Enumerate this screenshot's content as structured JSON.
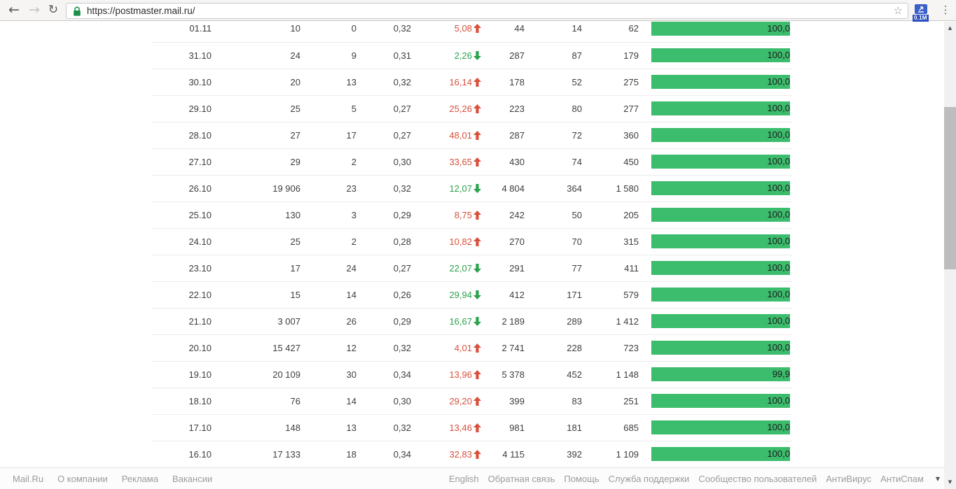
{
  "browser": {
    "url": "https://postmaster.mail.ru/",
    "extension_badge": "0.1M"
  },
  "icons": {
    "back": "←",
    "forward": "→",
    "refresh": "↻",
    "star": "☆",
    "menu": "⋮",
    "scroll_up": "▲",
    "scroll_down": "▼",
    "footer_caret": "▼"
  },
  "colors": {
    "bar_green": "#3cbc6d",
    "trend_up": "#d8503a",
    "trend_down": "#2aa24b",
    "lock_green": "#1a8f47"
  },
  "table": {
    "rows": [
      {
        "date": "01.11",
        "c1": "10",
        "c2": "0",
        "c3": "0,32",
        "pct": "5,08",
        "trend": "up",
        "c5": "44",
        "c6": "14",
        "c7": "62",
        "bar": "100,0"
      },
      {
        "date": "31.10",
        "c1": "24",
        "c2": "9",
        "c3": "0,31",
        "pct": "2,26",
        "trend": "down",
        "c5": "287",
        "c6": "87",
        "c7": "179",
        "bar": "100,0"
      },
      {
        "date": "30.10",
        "c1": "20",
        "c2": "13",
        "c3": "0,32",
        "pct": "16,14",
        "trend": "up",
        "c5": "178",
        "c6": "52",
        "c7": "275",
        "bar": "100,0"
      },
      {
        "date": "29.10",
        "c1": "25",
        "c2": "5",
        "c3": "0,27",
        "pct": "25,26",
        "trend": "up",
        "c5": "223",
        "c6": "80",
        "c7": "277",
        "bar": "100,0"
      },
      {
        "date": "28.10",
        "c1": "27",
        "c2": "17",
        "c3": "0,27",
        "pct": "48,01",
        "trend": "up",
        "c5": "287",
        "c6": "72",
        "c7": "360",
        "bar": "100,0"
      },
      {
        "date": "27.10",
        "c1": "29",
        "c2": "2",
        "c3": "0,30",
        "pct": "33,65",
        "trend": "up",
        "c5": "430",
        "c6": "74",
        "c7": "450",
        "bar": "100,0"
      },
      {
        "date": "26.10",
        "c1": "19 906",
        "c2": "23",
        "c3": "0,32",
        "pct": "12,07",
        "trend": "down",
        "c5": "4 804",
        "c6": "364",
        "c7": "1 580",
        "bar": "100,0"
      },
      {
        "date": "25.10",
        "c1": "130",
        "c2": "3",
        "c3": "0,29",
        "pct": "8,75",
        "trend": "up",
        "c5": "242",
        "c6": "50",
        "c7": "205",
        "bar": "100,0"
      },
      {
        "date": "24.10",
        "c1": "25",
        "c2": "2",
        "c3": "0,28",
        "pct": "10,82",
        "trend": "up",
        "c5": "270",
        "c6": "70",
        "c7": "315",
        "bar": "100,0"
      },
      {
        "date": "23.10",
        "c1": "17",
        "c2": "24",
        "c3": "0,27",
        "pct": "22,07",
        "trend": "down",
        "c5": "291",
        "c6": "77",
        "c7": "411",
        "bar": "100,0"
      },
      {
        "date": "22.10",
        "c1": "15",
        "c2": "14",
        "c3": "0,26",
        "pct": "29,94",
        "trend": "down",
        "c5": "412",
        "c6": "171",
        "c7": "579",
        "bar": "100,0"
      },
      {
        "date": "21.10",
        "c1": "3 007",
        "c2": "26",
        "c3": "0,29",
        "pct": "16,67",
        "trend": "down",
        "c5": "2 189",
        "c6": "289",
        "c7": "1 412",
        "bar": "100,0"
      },
      {
        "date": "20.10",
        "c1": "15 427",
        "c2": "12",
        "c3": "0,32",
        "pct": "4,01",
        "trend": "up",
        "c5": "2 741",
        "c6": "228",
        "c7": "723",
        "bar": "100,0"
      },
      {
        "date": "19.10",
        "c1": "20 109",
        "c2": "30",
        "c3": "0,34",
        "pct": "13,96",
        "trend": "up",
        "c5": "5 378",
        "c6": "452",
        "c7": "1 148",
        "bar": "99,9"
      },
      {
        "date": "18.10",
        "c1": "76",
        "c2": "14",
        "c3": "0,30",
        "pct": "29,20",
        "trend": "up",
        "c5": "399",
        "c6": "83",
        "c7": "251",
        "bar": "100,0"
      },
      {
        "date": "17.10",
        "c1": "148",
        "c2": "13",
        "c3": "0,32",
        "pct": "13,46",
        "trend": "up",
        "c5": "981",
        "c6": "181",
        "c7": "685",
        "bar": "100,0"
      },
      {
        "date": "16.10",
        "c1": "17 133",
        "c2": "18",
        "c3": "0,34",
        "pct": "32,83",
        "trend": "up",
        "c5": "4 115",
        "c6": "392",
        "c7": "1 109",
        "bar": "100,0"
      }
    ]
  },
  "footer": {
    "left_links": [
      "Mail.Ru",
      "О компании",
      "Реклама",
      "Вакансии"
    ],
    "right_links": [
      "English",
      "Обратная связь",
      "Помощь",
      "Служба поддержки",
      "Сообщество пользователей",
      "АнтиВирус",
      "АнтиСпам"
    ]
  }
}
